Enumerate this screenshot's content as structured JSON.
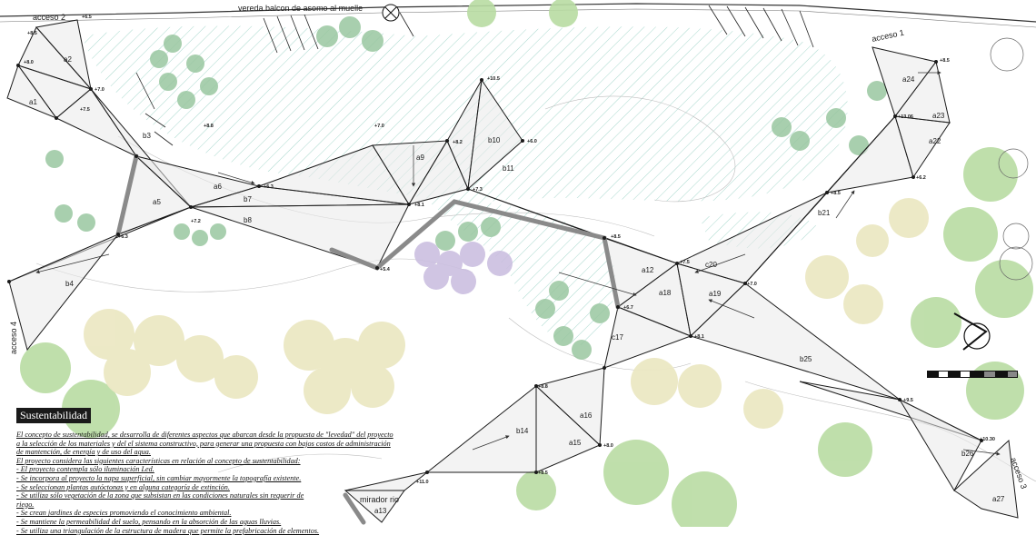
{
  "plan": {
    "street_label": "vereda balcon de asomo al muelle",
    "access_labels": [
      "acceso 2",
      "acceso 1",
      "acceso 4",
      "acceso 3"
    ],
    "viewpoint_label": "mirador rio",
    "panel_labels": [
      "a1",
      "a2",
      "b3",
      "b4",
      "a5",
      "a6",
      "b7",
      "b8",
      "a9",
      "b10",
      "b11",
      "a12",
      "a13",
      "b14",
      "a15",
      "a16",
      "c17",
      "a18",
      "a19",
      "c20",
      "b21",
      "a22",
      "a23",
      "a24",
      "b25",
      "b26",
      "a27"
    ],
    "level_marks": [
      "+8.5",
      "+6.5",
      "+8.0",
      "+7.0",
      "+7.5",
      "+8.8",
      "+6.3",
      "+7.2",
      "+6.3",
      "+7.0",
      "+8.2",
      "+10.5",
      "+6.0",
      "+8.1",
      "+5.4",
      "+7.3",
      "+8.5",
      "+7.5",
      "+6.7",
      "+8.1",
      "+10.30",
      "+13.06",
      "+8.5",
      "+6.2",
      "+8.5",
      "+7.0",
      "+11.0",
      "+8.8",
      "+8.5",
      "+9.5",
      "+8.0"
    ],
    "scale_colors": [
      "#111111",
      "#ffffff",
      "#111111",
      "#ffffff",
      "#111111",
      "#888888",
      "#111111",
      "#888888"
    ]
  },
  "sustainability": {
    "title": "Sustentabilidad",
    "lines": [
      "El concepto de sustentabilidad, se desarrolla de diferentes aspectos que abarcan desde la propuesta de \"levedad\" del proyecto",
      "a la selección de los materiales y del el sistema constructivo, para generar una propuesta con bajos costos de administración",
      "de mantención, de energía y de uso del agua.",
      "El proyecto considera las siguientes características en relación al concepto de sustentabilidad:",
      "- El proyecto contempla sólo iluminación Led.",
      "- Se incorpora al proyecto la napa superficial, sin cambiar mayormente la topografía existente.",
      "- Se seleccionan plantas autóctonas y en alguna categoría de extinción.",
      "- Se utiliza sólo vegetación de la zona que subsistan en las condiciones naturales sin requerir de",
      "riego.",
      "- Se crean jardines de especies promoviendo el conocimiento ambiental.",
      "- Se mantiene la permeabilidad del suelo, pensando en la absorción de las aguas lluvias.",
      "- Se utiliza una triangulación de la estructura de madera que permite la prefabricación de elementos."
    ]
  },
  "colors": {
    "hatch": "#9fd3c7",
    "panel_fill": "#e6e6e6",
    "tree_green": "#b9dca3",
    "tree_dark_green": "#9ac7a0",
    "tree_yellow": "#ece8c4",
    "tree_purple": "#cbbfe0",
    "path_grey": "#8a8a8a"
  }
}
